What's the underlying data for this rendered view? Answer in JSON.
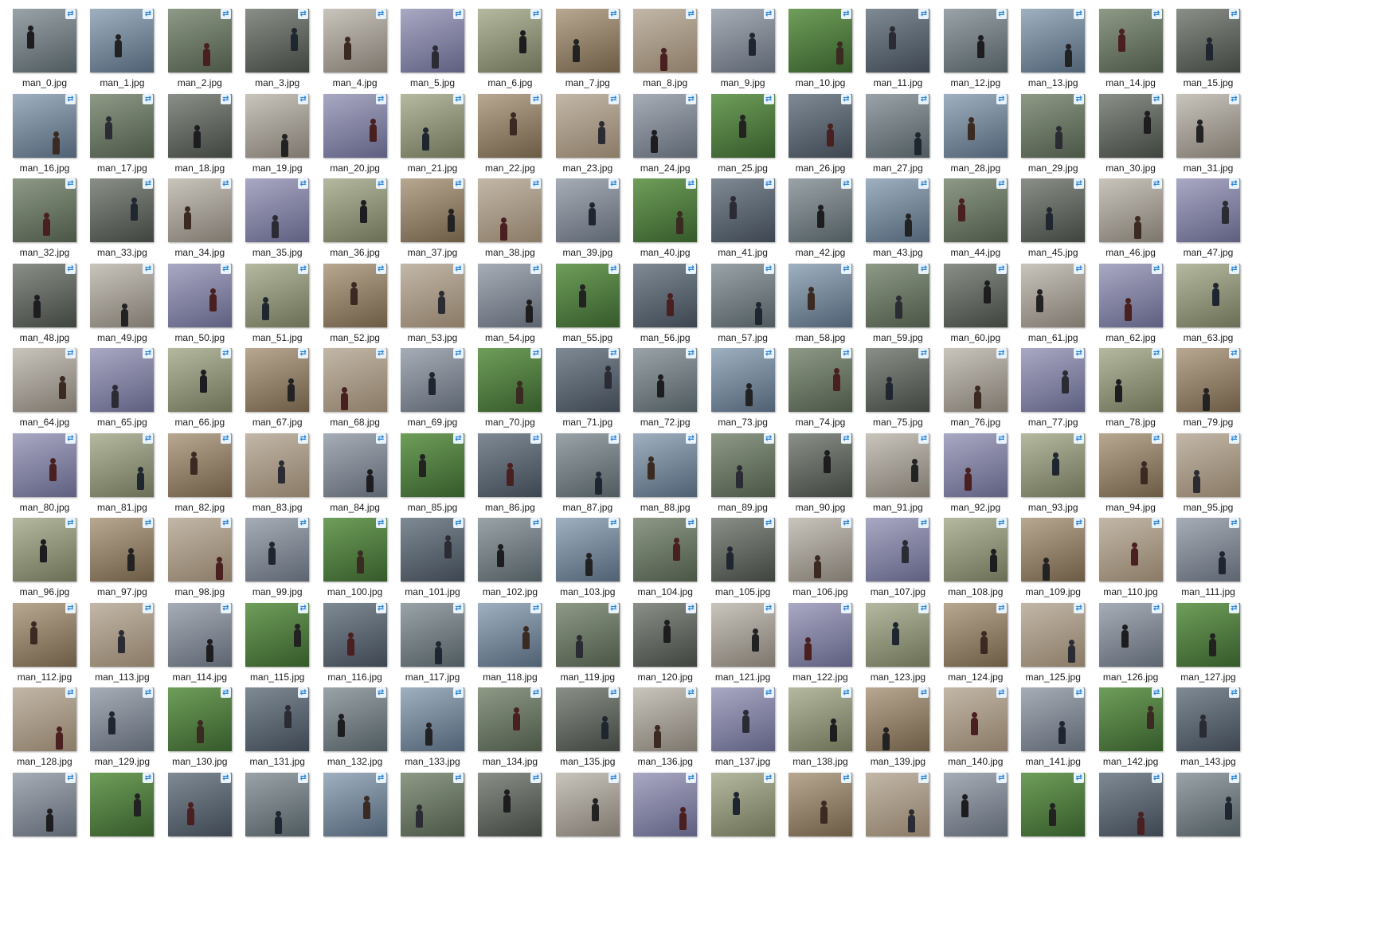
{
  "sync_icon_name": "sync-pending-icon",
  "files": [
    "man_0.jpg",
    "man_1.jpg",
    "man_2.jpg",
    "man_3.jpg",
    "man_4.jpg",
    "man_5.jpg",
    "man_6.jpg",
    "man_7.jpg",
    "man_8.jpg",
    "man_9.jpg",
    "man_10.jpg",
    "man_11.jpg",
    "man_12.jpg",
    "man_13.jpg",
    "man_14.jpg",
    "man_15.jpg",
    "man_16.jpg",
    "man_17.jpg",
    "man_18.jpg",
    "man_19.jpg",
    "man_20.jpg",
    "man_21.jpg",
    "man_22.jpg",
    "man_23.jpg",
    "man_24.jpg",
    "man_25.jpg",
    "man_26.jpg",
    "man_27.jpg",
    "man_28.jpg",
    "man_29.jpg",
    "man_30.jpg",
    "man_31.jpg",
    "man_32.jpg",
    "man_33.jpg",
    "man_34.jpg",
    "man_35.jpg",
    "man_36.jpg",
    "man_37.jpg",
    "man_38.jpg",
    "man_39.jpg",
    "man_40.jpg",
    "man_41.jpg",
    "man_42.jpg",
    "man_43.jpg",
    "man_44.jpg",
    "man_45.jpg",
    "man_46.jpg",
    "man_47.jpg",
    "man_48.jpg",
    "man_49.jpg",
    "man_50.jpg",
    "man_51.jpg",
    "man_52.jpg",
    "man_53.jpg",
    "man_54.jpg",
    "man_55.jpg",
    "man_56.jpg",
    "man_57.jpg",
    "man_58.jpg",
    "man_59.jpg",
    "man_60.jpg",
    "man_61.jpg",
    "man_62.jpg",
    "man_63.jpg",
    "man_64.jpg",
    "man_65.jpg",
    "man_66.jpg",
    "man_67.jpg",
    "man_68.jpg",
    "man_69.jpg",
    "man_70.jpg",
    "man_71.jpg",
    "man_72.jpg",
    "man_73.jpg",
    "man_74.jpg",
    "man_75.jpg",
    "man_76.jpg",
    "man_77.jpg",
    "man_78.jpg",
    "man_79.jpg",
    "man_80.jpg",
    "man_81.jpg",
    "man_82.jpg",
    "man_83.jpg",
    "man_84.jpg",
    "man_85.jpg",
    "man_86.jpg",
    "man_87.jpg",
    "man_88.jpg",
    "man_89.jpg",
    "man_90.jpg",
    "man_91.jpg",
    "man_92.jpg",
    "man_93.jpg",
    "man_94.jpg",
    "man_95.jpg",
    "man_96.jpg",
    "man_97.jpg",
    "man_98.jpg",
    "man_99.jpg",
    "man_100.jpg",
    "man_101.jpg",
    "man_102.jpg",
    "man_103.jpg",
    "man_104.jpg",
    "man_105.jpg",
    "man_106.jpg",
    "man_107.jpg",
    "man_108.jpg",
    "man_109.jpg",
    "man_110.jpg",
    "man_111.jpg",
    "man_112.jpg",
    "man_113.jpg",
    "man_114.jpg",
    "man_115.jpg",
    "man_116.jpg",
    "man_117.jpg",
    "man_118.jpg",
    "man_119.jpg",
    "man_120.jpg",
    "man_121.jpg",
    "man_122.jpg",
    "man_123.jpg",
    "man_124.jpg",
    "man_125.jpg",
    "man_126.jpg",
    "man_127.jpg",
    "man_128.jpg",
    "man_129.jpg",
    "man_130.jpg",
    "man_131.jpg",
    "man_132.jpg",
    "man_133.jpg",
    "man_134.jpg",
    "man_135.jpg",
    "man_136.jpg",
    "man_137.jpg",
    "man_138.jpg",
    "man_139.jpg",
    "man_140.jpg",
    "man_141.jpg",
    "man_142.jpg",
    "man_143.jpg",
    "",
    "",
    "",
    "",
    "",
    "",
    "",
    "",
    "",
    "",
    "",
    "",
    "",
    "",
    "",
    ""
  ]
}
